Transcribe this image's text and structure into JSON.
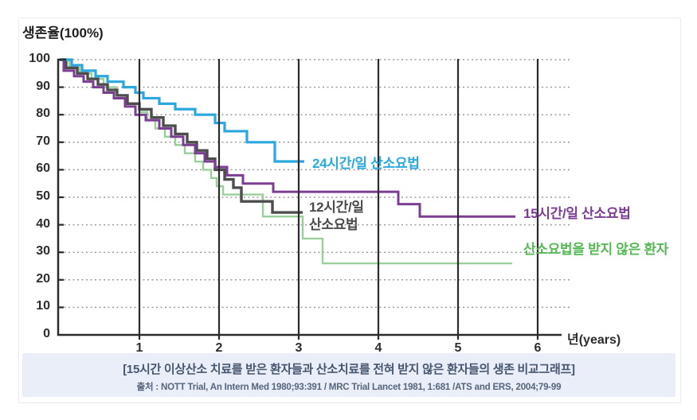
{
  "caption": {
    "title": "[15시간 이상산소 치료를 받은 환자들과 산소치료를 전혀 받지 않은 환자들의 생존 비교그래프]",
    "source": "출처 : NOTT Trial, An Intern Med 1980;93:391 / MRC Trial Lancet 1981, 1:681 /ATS and ERS, 2004;79-99"
  },
  "chart_data": {
    "type": "line",
    "subtype": "step-survival-curves",
    "y_axis_title": "생존율(100%)",
    "x_axis_title": "년(years)",
    "y_ticks": [
      0,
      10,
      20,
      30,
      40,
      50,
      60,
      70,
      80,
      90,
      100
    ],
    "x_ticks": [
      1,
      2,
      3,
      4,
      5,
      6
    ],
    "x_range": [
      0,
      6.3
    ],
    "y_range": [
      0,
      100
    ],
    "grid": {
      "horizontal": "dotted",
      "vertical": "solid-black-at-each-year"
    },
    "legend_position": "inline-labels-at-curve-ends",
    "colors": {
      "axis": "#2b2b2b",
      "year_line": "#2b2b2b",
      "grid_dotted": "#9b9b9b",
      "caption_band": "#e9eef9"
    },
    "series": [
      {
        "id": "no-oxygen",
        "name": "산소요법을 받지 않은 환자",
        "color": "#9BCE9B",
        "label_color": "#56B956",
        "stroke_width": 2.4,
        "z": 1,
        "end_x": 5.68,
        "label_anchor": {
          "x": 5.82,
          "y": 31
        },
        "steps": [
          [
            0,
            100
          ],
          [
            0.12,
            97
          ],
          [
            0.25,
            95
          ],
          [
            0.4,
            93
          ],
          [
            0.55,
            90
          ],
          [
            0.7,
            87
          ],
          [
            0.85,
            84
          ],
          [
            1.0,
            81
          ],
          [
            1.1,
            78
          ],
          [
            1.2,
            75
          ],
          [
            1.32,
            72
          ],
          [
            1.45,
            69
          ],
          [
            1.57,
            66
          ],
          [
            1.7,
            63
          ],
          [
            1.8,
            60
          ],
          [
            1.9,
            57
          ],
          [
            1.97,
            54
          ],
          [
            2.05,
            51
          ],
          [
            2.55,
            43
          ],
          [
            3.05,
            35
          ],
          [
            3.3,
            26
          ]
        ]
      },
      {
        "id": "oxygen-12h",
        "name": "12시간/일\n산소요법",
        "color": "#4D4D4D",
        "label_color": "#4A4A4A",
        "stroke_width": 3.4,
        "z": 2,
        "end_x": 3.05,
        "label_anchor": {
          "x": 3.13,
          "y": 43
        },
        "steps": [
          [
            0,
            100
          ],
          [
            0.08,
            97
          ],
          [
            0.22,
            95
          ],
          [
            0.35,
            93
          ],
          [
            0.48,
            91
          ],
          [
            0.6,
            89
          ],
          [
            0.72,
            87
          ],
          [
            0.85,
            84
          ],
          [
            1.0,
            82
          ],
          [
            1.15,
            79
          ],
          [
            1.3,
            76
          ],
          [
            1.45,
            73
          ],
          [
            1.6,
            70
          ],
          [
            1.72,
            67
          ],
          [
            1.85,
            64
          ],
          [
            1.95,
            60
          ],
          [
            2.07,
            56.5
          ],
          [
            2.18,
            53.5
          ],
          [
            2.28,
            48.5
          ],
          [
            2.67,
            44.5
          ]
        ]
      },
      {
        "id": "oxygen-15h",
        "name": "15시간/일 산소요법",
        "color": "#7B3E93",
        "label_color": "#7B3E93",
        "stroke_width": 3,
        "z": 3,
        "end_x": 5.72,
        "label_anchor": {
          "x": 5.82,
          "y": 44
        },
        "steps": [
          [
            0,
            100
          ],
          [
            0.05,
            96
          ],
          [
            0.18,
            94
          ],
          [
            0.3,
            92
          ],
          [
            0.42,
            90
          ],
          [
            0.55,
            88
          ],
          [
            0.68,
            86
          ],
          [
            0.82,
            83
          ],
          [
            0.95,
            80
          ],
          [
            1.08,
            78
          ],
          [
            1.25,
            75
          ],
          [
            1.4,
            72
          ],
          [
            1.55,
            69
          ],
          [
            1.7,
            66
          ],
          [
            1.82,
            63
          ],
          [
            1.95,
            61
          ],
          [
            2.1,
            58
          ],
          [
            2.3,
            55
          ],
          [
            2.68,
            52
          ],
          [
            4.25,
            47.5
          ],
          [
            4.52,
            43
          ]
        ]
      },
      {
        "id": "oxygen-24h",
        "name": "24시간/일 산소요법",
        "color": "#2BA7DF",
        "label_color": "#29A9E0",
        "stroke_width": 3.2,
        "z": 4,
        "end_x": 3.07,
        "label_anchor": {
          "x": 3.17,
          "y": 62
        },
        "steps": [
          [
            0,
            100
          ],
          [
            0.15,
            98
          ],
          [
            0.28,
            96
          ],
          [
            0.45,
            94
          ],
          [
            0.6,
            92
          ],
          [
            0.8,
            90
          ],
          [
            0.95,
            88
          ],
          [
            1.05,
            86
          ],
          [
            1.25,
            84
          ],
          [
            1.45,
            82
          ],
          [
            1.7,
            80
          ],
          [
            1.95,
            77
          ],
          [
            2.07,
            74
          ],
          [
            2.35,
            70
          ],
          [
            2.7,
            63
          ]
        ]
      }
    ]
  }
}
